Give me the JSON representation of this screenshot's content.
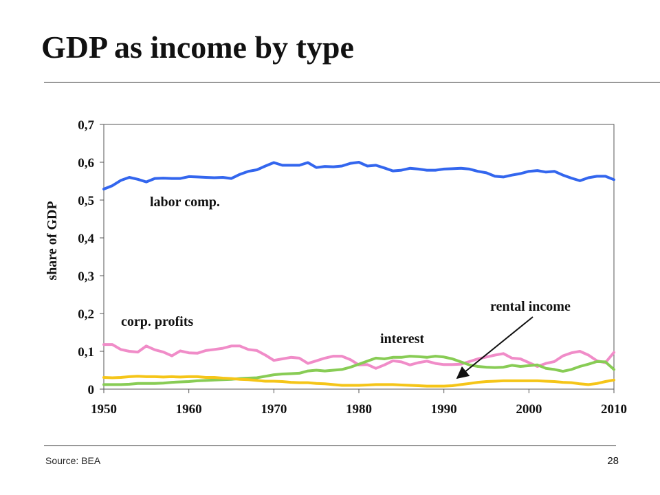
{
  "slide": {
    "title": "GDP as income by type",
    "source": "Source:  BEA",
    "page_number": "28"
  },
  "chart_data": {
    "type": "line",
    "title": "",
    "xlabel": "",
    "ylabel": "share of GDP",
    "xlim": [
      1950,
      2010
    ],
    "ylim": [
      0,
      0.7
    ],
    "x_ticks": [
      "1950",
      "1960",
      "1970",
      "1980",
      "1990",
      "2000",
      "2010"
    ],
    "y_ticks": [
      "0",
      "0,1",
      "0,2",
      "0,3",
      "0,4",
      "0,5",
      "0,6",
      "0,7"
    ],
    "grid": false,
    "x": [
      1950,
      1951,
      1952,
      1953,
      1954,
      1955,
      1956,
      1957,
      1958,
      1959,
      1960,
      1961,
      1962,
      1963,
      1964,
      1965,
      1966,
      1967,
      1968,
      1969,
      1970,
      1971,
      1972,
      1973,
      1974,
      1975,
      1976,
      1977,
      1978,
      1979,
      1980,
      1981,
      1982,
      1983,
      1984,
      1985,
      1986,
      1987,
      1988,
      1989,
      1990,
      1991,
      1992,
      1993,
      1994,
      1995,
      1996,
      1997,
      1998,
      1999,
      2000,
      2001,
      2002,
      2003,
      2004,
      2005,
      2006,
      2007,
      2008,
      2009,
      2010
    ],
    "series": [
      {
        "name": "labor comp.",
        "color": "#3366ee",
        "values": [
          0.529,
          0.538,
          0.552,
          0.56,
          0.555,
          0.548,
          0.557,
          0.558,
          0.557,
          0.557,
          0.562,
          0.561,
          0.56,
          0.559,
          0.56,
          0.557,
          0.568,
          0.576,
          0.58,
          0.59,
          0.599,
          0.592,
          0.592,
          0.592,
          0.599,
          0.586,
          0.589,
          0.588,
          0.59,
          0.597,
          0.6,
          0.59,
          0.592,
          0.585,
          0.577,
          0.579,
          0.584,
          0.582,
          0.579,
          0.579,
          0.582,
          0.583,
          0.584,
          0.582,
          0.576,
          0.572,
          0.563,
          0.561,
          0.566,
          0.57,
          0.576,
          0.578,
          0.574,
          0.576,
          0.566,
          0.558,
          0.551,
          0.559,
          0.563,
          0.563,
          0.554
        ]
      },
      {
        "name": "corp. profits",
        "color": "#f08cc8",
        "values": [
          0.118,
          0.118,
          0.105,
          0.1,
          0.098,
          0.114,
          0.104,
          0.098,
          0.088,
          0.101,
          0.096,
          0.095,
          0.102,
          0.105,
          0.108,
          0.114,
          0.114,
          0.105,
          0.102,
          0.09,
          0.076,
          0.08,
          0.084,
          0.082,
          0.068,
          0.075,
          0.082,
          0.087,
          0.087,
          0.078,
          0.064,
          0.065,
          0.055,
          0.064,
          0.075,
          0.072,
          0.064,
          0.07,
          0.074,
          0.068,
          0.065,
          0.065,
          0.066,
          0.073,
          0.08,
          0.085,
          0.09,
          0.094,
          0.082,
          0.08,
          0.07,
          0.06,
          0.068,
          0.073,
          0.088,
          0.096,
          0.1,
          0.09,
          0.075,
          0.07,
          0.097
        ]
      },
      {
        "name": "interest",
        "color": "#88cc55",
        "values": [
          0.012,
          0.012,
          0.012,
          0.013,
          0.015,
          0.015,
          0.015,
          0.016,
          0.018,
          0.019,
          0.02,
          0.022,
          0.023,
          0.024,
          0.025,
          0.026,
          0.028,
          0.029,
          0.03,
          0.034,
          0.038,
          0.04,
          0.041,
          0.042,
          0.048,
          0.05,
          0.048,
          0.05,
          0.052,
          0.058,
          0.066,
          0.074,
          0.082,
          0.08,
          0.084,
          0.084,
          0.087,
          0.086,
          0.084,
          0.087,
          0.085,
          0.08,
          0.072,
          0.064,
          0.06,
          0.058,
          0.057,
          0.058,
          0.063,
          0.06,
          0.062,
          0.064,
          0.055,
          0.052,
          0.047,
          0.052,
          0.06,
          0.066,
          0.073,
          0.072,
          0.052
        ]
      },
      {
        "name": "rental income",
        "color": "#f5c518",
        "values": [
          0.031,
          0.03,
          0.031,
          0.033,
          0.034,
          0.033,
          0.033,
          0.032,
          0.033,
          0.032,
          0.033,
          0.033,
          0.031,
          0.031,
          0.029,
          0.028,
          0.026,
          0.025,
          0.023,
          0.021,
          0.021,
          0.02,
          0.018,
          0.017,
          0.017,
          0.015,
          0.014,
          0.012,
          0.01,
          0.01,
          0.01,
          0.011,
          0.012,
          0.012,
          0.012,
          0.011,
          0.01,
          0.009,
          0.008,
          0.008,
          0.008,
          0.009,
          0.012,
          0.015,
          0.018,
          0.02,
          0.021,
          0.022,
          0.022,
          0.022,
          0.022,
          0.022,
          0.021,
          0.02,
          0.018,
          0.017,
          0.014,
          0.012,
          0.015,
          0.02,
          0.024
        ]
      }
    ],
    "annotations": [
      {
        "text": "labor comp."
      },
      {
        "text": "corp. profits"
      },
      {
        "text": "interest"
      },
      {
        "text": "rental income",
        "arrow": true
      }
    ]
  }
}
